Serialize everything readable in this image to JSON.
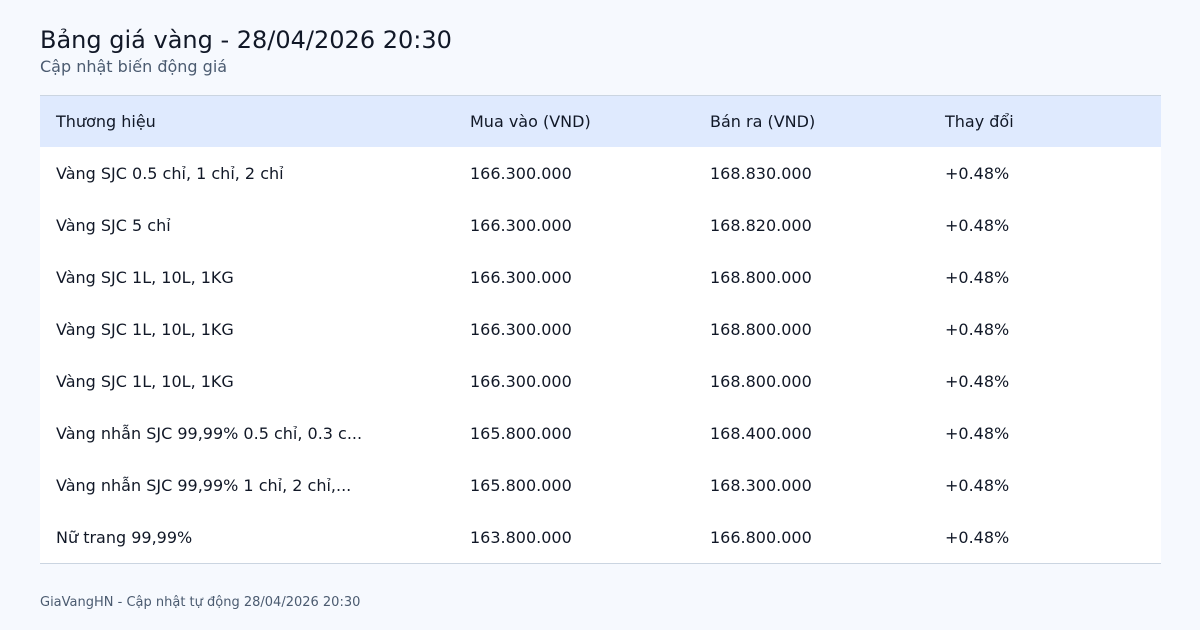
{
  "header": {
    "title": "Bảng giá vàng - 28/04/2026 20:30",
    "subtitle": "Cập nhật biến động giá"
  },
  "table": {
    "columns": [
      "Thương hiệu",
      "Mua vào (VND)",
      "Bán ra (VND)",
      "Thay đổi"
    ],
    "rows": [
      [
        "Vàng SJC 0.5 chỉ, 1 chỉ, 2 chỉ",
        "166.300.000",
        "168.830.000",
        "+0.48%"
      ],
      [
        "Vàng SJC 5 chỉ",
        "166.300.000",
        "168.820.000",
        "+0.48%"
      ],
      [
        "Vàng SJC 1L, 10L, 1KG",
        "166.300.000",
        "168.800.000",
        "+0.48%"
      ],
      [
        "Vàng SJC 1L, 10L, 1KG",
        "166.300.000",
        "168.800.000",
        "+0.48%"
      ],
      [
        "Vàng SJC 1L, 10L, 1KG",
        "166.300.000",
        "168.800.000",
        "+0.48%"
      ],
      [
        "Vàng nhẫn SJC 99,99% 0.5 chỉ, 0.3 c...",
        "165.800.000",
        "168.400.000",
        "+0.48%"
      ],
      [
        "Vàng nhẫn SJC 99,99% 1 chỉ, 2 chỉ,...",
        "165.800.000",
        "168.300.000",
        "+0.48%"
      ],
      [
        "Nữ trang 99,99%",
        "163.800.000",
        "166.800.000",
        "+0.48%"
      ]
    ]
  },
  "footer": {
    "text": "GiaVangHN - Cập nhật tự động 28/04/2026 20:30"
  }
}
